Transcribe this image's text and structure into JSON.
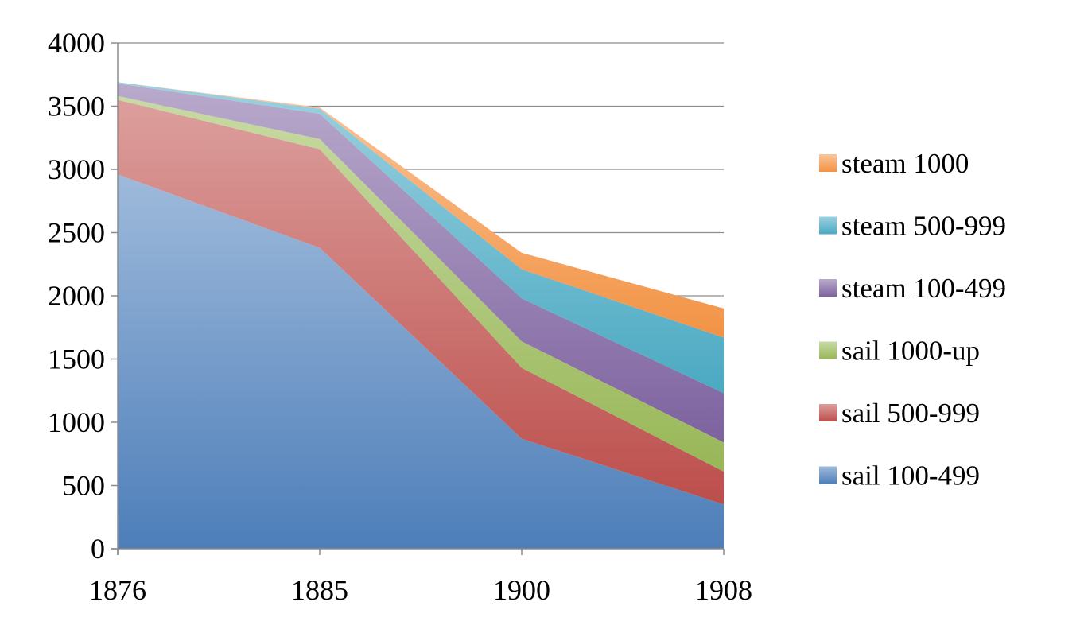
{
  "chart_data": {
    "type": "area",
    "stacked": true,
    "title": "",
    "xlabel": "",
    "ylabel": "",
    "x": [
      "1876",
      "1885",
      "1900",
      "1908"
    ],
    "ylim": [
      0,
      4000
    ],
    "yticks": [
      0,
      500,
      1000,
      1500,
      2000,
      2500,
      3000,
      3500,
      4000
    ],
    "grid": "horizontal",
    "legend": "right",
    "series": [
      {
        "name": "sail 100-499",
        "color": "#4f81bd",
        "values": [
          2960,
          2380,
          870,
          350
        ]
      },
      {
        "name": "sail 500-999",
        "color": "#c0504d",
        "values": [
          590,
          780,
          560,
          260
        ]
      },
      {
        "name": "sail 1000-up",
        "color": "#9bbb59",
        "values": [
          30,
          80,
          210,
          230
        ]
      },
      {
        "name": "steam 100-499",
        "color": "#8064a2",
        "values": [
          100,
          200,
          340,
          390
        ]
      },
      {
        "name": "steam 500-999",
        "color": "#4bacc6",
        "values": [
          10,
          40,
          230,
          440
        ]
      },
      {
        "name": "steam 1000",
        "color": "#f79646",
        "values": [
          0,
          10,
          130,
          230
        ]
      }
    ]
  }
}
